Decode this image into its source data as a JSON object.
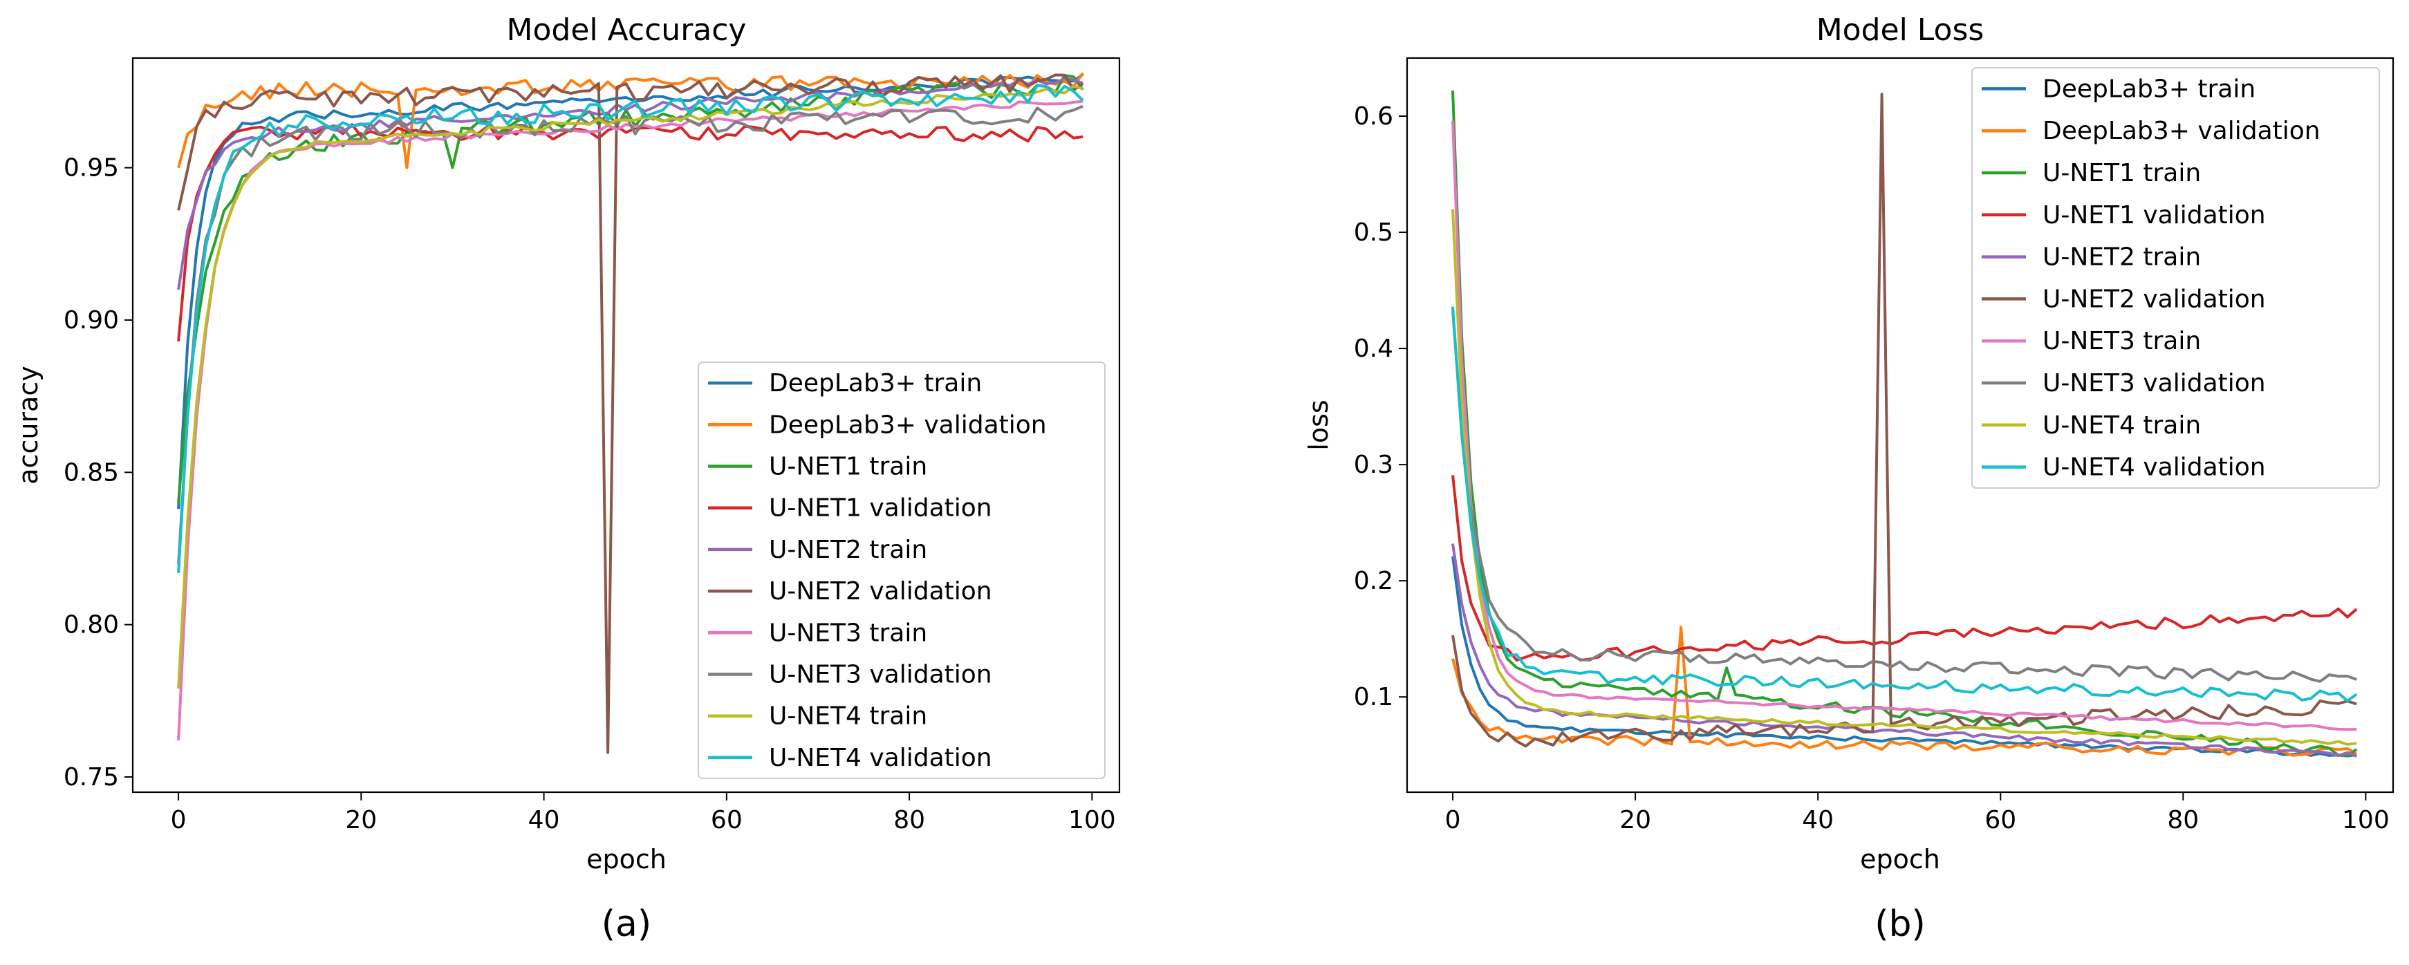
{
  "chart_data": [
    {
      "id": "accuracy",
      "type": "line",
      "title": "Model Accuracy",
      "xlabel": "epoch",
      "ylabel": "accuracy",
      "panel_label": "(a)",
      "xlim": [
        -5,
        103
      ],
      "ylim": [
        0.745,
        0.986
      ],
      "xticks": [
        0,
        20,
        40,
        60,
        80,
        100
      ],
      "yticks": [
        0.75,
        0.8,
        0.85,
        0.9,
        0.95
      ],
      "ytick_labels": [
        "0.75",
        "0.80",
        "0.85",
        "0.90",
        "0.95"
      ],
      "legend_position": "lower-right",
      "series": [
        {
          "name": "DeepLab3+ train",
          "color": "#1f77b4",
          "start": 0.838,
          "mid": 0.965,
          "end": 0.98,
          "rate": 0.55,
          "noise": 0.0015,
          "spikes": []
        },
        {
          "name": "DeepLab3+ validation",
          "color": "#ff7f0e",
          "start": 0.95,
          "mid": 0.975,
          "end": 0.979,
          "rate": 0.5,
          "noise": 0.0025,
          "spikes": [
            [
              25,
              0.95
            ]
          ]
        },
        {
          "name": "U-NET1 train",
          "color": "#2ca02c",
          "start": 0.84,
          "mid": 0.955,
          "end": 0.978,
          "rate": 0.35,
          "noise": 0.003,
          "spikes": [
            [
              30,
              0.95
            ]
          ]
        },
        {
          "name": "U-NET1 validation",
          "color": "#d62728",
          "start": 0.893,
          "mid": 0.962,
          "end": 0.961,
          "rate": 0.6,
          "noise": 0.0025,
          "spikes": []
        },
        {
          "name": "U-NET2 train",
          "color": "#9467bd",
          "start": 0.91,
          "mid": 0.96,
          "end": 0.979,
          "rate": 0.45,
          "noise": 0.0015,
          "spikes": []
        },
        {
          "name": "U-NET2 validation",
          "color": "#8c564b",
          "start": 0.936,
          "mid": 0.972,
          "end": 0.978,
          "rate": 0.6,
          "noise": 0.003,
          "spikes": [
            [
              47,
              0.758
            ]
          ]
        },
        {
          "name": "U-NET3 train",
          "color": "#e377c2",
          "start": 0.762,
          "mid": 0.955,
          "end": 0.972,
          "rate": 0.4,
          "noise": 0.001,
          "spikes": []
        },
        {
          "name": "U-NET3 validation",
          "color": "#7f7f7f",
          "start": 0.82,
          "mid": 0.96,
          "end": 0.968,
          "rate": 0.45,
          "noise": 0.003,
          "spikes": []
        },
        {
          "name": "U-NET4 train",
          "color": "#bcbd22",
          "start": 0.779,
          "mid": 0.955,
          "end": 0.976,
          "rate": 0.38,
          "noise": 0.0012,
          "spikes": []
        },
        {
          "name": "U-NET4 validation",
          "color": "#17becf",
          "start": 0.817,
          "mid": 0.963,
          "end": 0.975,
          "rate": 0.45,
          "noise": 0.003,
          "spikes": []
        }
      ]
    },
    {
      "id": "loss",
      "type": "line",
      "title": "Model Loss",
      "xlabel": "epoch",
      "ylabel": "loss",
      "panel_label": "(b)",
      "xlim": [
        -5,
        103
      ],
      "ylim": [
        0.018,
        0.65
      ],
      "xticks": [
        0,
        20,
        40,
        60,
        80,
        100
      ],
      "yticks": [
        0.1,
        0.2,
        0.3,
        0.4,
        0.5,
        0.6
      ],
      "ytick_labels": [
        "0.1",
        "0.2",
        "0.3",
        "0.4",
        "0.5",
        "0.6"
      ],
      "legend_position": "upper-right",
      "series": [
        {
          "name": "DeepLab3+ train",
          "color": "#1f77b4",
          "start": 0.221,
          "mid": 0.075,
          "end": 0.05,
          "rate": 0.5,
          "noise": 0.002,
          "spikes": []
        },
        {
          "name": "DeepLab3+ validation",
          "color": "#ff7f0e",
          "start": 0.133,
          "mid": 0.065,
          "end": 0.052,
          "rate": 0.5,
          "noise": 0.004,
          "spikes": [
            [
              25,
              0.16
            ]
          ]
        },
        {
          "name": "U-NET1 train",
          "color": "#2ca02c",
          "start": 0.622,
          "mid": 0.12,
          "end": 0.052,
          "rate": 0.55,
          "noise": 0.004,
          "spikes": [
            [
              30,
              0.125
            ]
          ]
        },
        {
          "name": "U-NET1 validation",
          "color": "#d62728",
          "start": 0.291,
          "mid": 0.13,
          "end": 0.172,
          "rate": 0.6,
          "noise": 0.005,
          "spikes": []
        },
        {
          "name": "U-NET2 train",
          "color": "#9467bd",
          "start": 0.232,
          "mid": 0.09,
          "end": 0.05,
          "rate": 0.45,
          "noise": 0.002,
          "spikes": []
        },
        {
          "name": "U-NET2 validation",
          "color": "#8c564b",
          "start": 0.153,
          "mid": 0.06,
          "end": 0.092,
          "rate": 0.7,
          "noise": 0.006,
          "spikes": [
            [
              47,
              0.619
            ]
          ]
        },
        {
          "name": "U-NET3 train",
          "color": "#e377c2",
          "start": 0.596,
          "mid": 0.105,
          "end": 0.073,
          "rate": 0.55,
          "noise": 0.0015,
          "spikes": []
        },
        {
          "name": "U-NET3 validation",
          "color": "#7f7f7f",
          "start": 0.433,
          "mid": 0.14,
          "end": 0.115,
          "rate": 0.45,
          "noise": 0.005,
          "spikes": []
        },
        {
          "name": "U-NET4 train",
          "color": "#bcbd22",
          "start": 0.52,
          "mid": 0.09,
          "end": 0.06,
          "rate": 0.5,
          "noise": 0.0015,
          "spikes": []
        },
        {
          "name": "U-NET4 validation",
          "color": "#17becf",
          "start": 0.436,
          "mid": 0.12,
          "end": 0.1,
          "rate": 0.45,
          "noise": 0.005,
          "spikes": []
        }
      ]
    }
  ]
}
